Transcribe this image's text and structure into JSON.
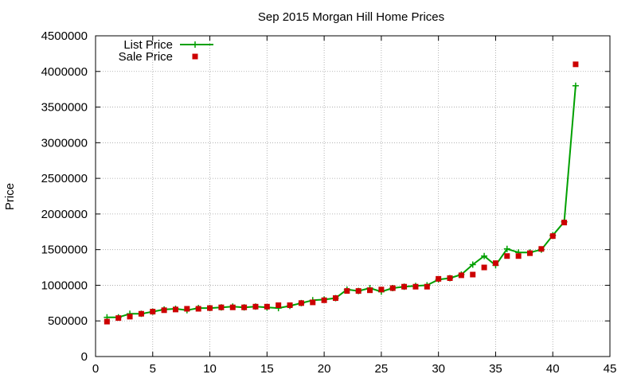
{
  "chart_data": {
    "type": "line",
    "title": "Sep 2015 Morgan Hill Home Prices",
    "xlabel": "",
    "ylabel": "Price",
    "xlim": [
      0,
      45
    ],
    "ylim": [
      0,
      4500000
    ],
    "xticks": [
      0,
      5,
      10,
      15,
      20,
      25,
      30,
      35,
      40,
      45
    ],
    "yticks": [
      0,
      500000,
      1000000,
      1500000,
      2000000,
      2500000,
      3000000,
      3500000,
      4000000,
      4500000
    ],
    "grid": true,
    "legend_position": "top-left",
    "series": [
      {
        "name": "List Price",
        "style": "line-with-plus-markers",
        "color": "#00a000",
        "x": [
          1,
          2,
          3,
          4,
          5,
          6,
          7,
          8,
          9,
          10,
          11,
          12,
          13,
          14,
          15,
          16,
          17,
          18,
          19,
          20,
          21,
          22,
          23,
          24,
          25,
          26,
          27,
          28,
          29,
          30,
          31,
          32,
          33,
          34,
          35,
          36,
          37,
          38,
          39,
          40,
          41,
          42
        ],
        "y": [
          550000,
          550000,
          600000,
          600000,
          630000,
          660000,
          670000,
          650000,
          680000,
          680000,
          690000,
          700000,
          690000,
          700000,
          690000,
          680000,
          710000,
          750000,
          790000,
          800000,
          820000,
          940000,
          920000,
          960000,
          910000,
          960000,
          980000,
          990000,
          1000000,
          1080000,
          1100000,
          1150000,
          1290000,
          1410000,
          1280000,
          1510000,
          1460000,
          1460000,
          1500000,
          1700000,
          1890000,
          3800000
        ]
      },
      {
        "name": "Sale Price",
        "style": "square-markers",
        "color": "#cc0000",
        "x": [
          1,
          2,
          3,
          4,
          5,
          6,
          7,
          8,
          9,
          10,
          11,
          12,
          13,
          14,
          15,
          16,
          17,
          18,
          19,
          20,
          21,
          22,
          23,
          24,
          25,
          26,
          27,
          28,
          29,
          30,
          31,
          32,
          33,
          34,
          35,
          36,
          37,
          38,
          39,
          40,
          41,
          42
        ],
        "y": [
          490000,
          540000,
          560000,
          600000,
          630000,
          650000,
          660000,
          670000,
          670000,
          680000,
          690000,
          690000,
          690000,
          700000,
          700000,
          720000,
          720000,
          750000,
          760000,
          790000,
          820000,
          920000,
          920000,
          930000,
          940000,
          960000,
          980000,
          980000,
          980000,
          1090000,
          1100000,
          1140000,
          1150000,
          1250000,
          1310000,
          1410000,
          1410000,
          1450000,
          1510000,
          1690000,
          1880000,
          4100000
        ]
      }
    ]
  }
}
